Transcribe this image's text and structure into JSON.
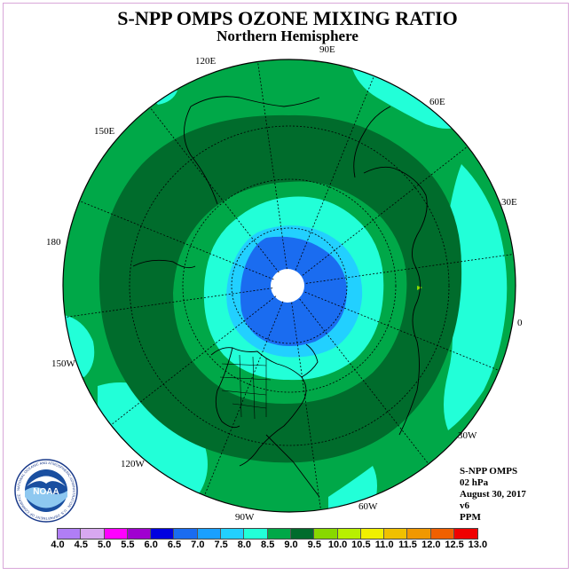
{
  "title": "S-NPP OMPS OZONE MIXING RATIO",
  "subtitle": "Northern Hemisphere",
  "longitude_labels": {
    "lon_90e": "90E",
    "lon_60e": "60E",
    "lon_30e": "30E",
    "lon_0": "0",
    "lon_30w": "30W",
    "lon_60w": "60W",
    "lon_90w": "90W",
    "lon_120w": "120W",
    "lon_150w": "150W",
    "lon_180": "180",
    "lon_150e": "150E",
    "lon_120e": "120E"
  },
  "info": {
    "instrument": "S-NPP OMPS",
    "level": "02 hPa",
    "date": "August 30, 2017",
    "version": "v6",
    "units": "PPM"
  },
  "logo_text": "NOAA",
  "logo_ring_text": "NATIONAL OCEANIC AND ATMOSPHERIC ADMINISTRATION · U.S. DEPARTMENT OF COMMERCE",
  "colorbar": {
    "tick_labels": [
      "4.0",
      "4.5",
      "5.0",
      "5.5",
      "6.0",
      "6.5",
      "7.0",
      "7.5",
      "8.0",
      "8.5",
      "9.0",
      "9.5",
      "10.0",
      "10.5",
      "11.0",
      "11.5",
      "12.0",
      "12.5",
      "13.0"
    ],
    "colors": [
      "#b07ef5",
      "#d8a8f0",
      "#ff00ff",
      "#a000d0",
      "#0000e0",
      "#1a6cf0",
      "#1aa0ff",
      "#22d0ff",
      "#22ffd8",
      "#00a848",
      "#006c2c",
      "#88d800",
      "#b8f000",
      "#f0f000",
      "#f0c000",
      "#f09800",
      "#f06000",
      "#f00000",
      "#8a5a3a"
    ]
  },
  "map_colors": {
    "ocean_low": "#22ffd8",
    "mid": "#00a848",
    "high": "#006c2c",
    "core_light": "#22d0ff",
    "core_blue": "#1a6cf0",
    "pole_missing": "#ffffff",
    "speck": "#88d800"
  }
}
